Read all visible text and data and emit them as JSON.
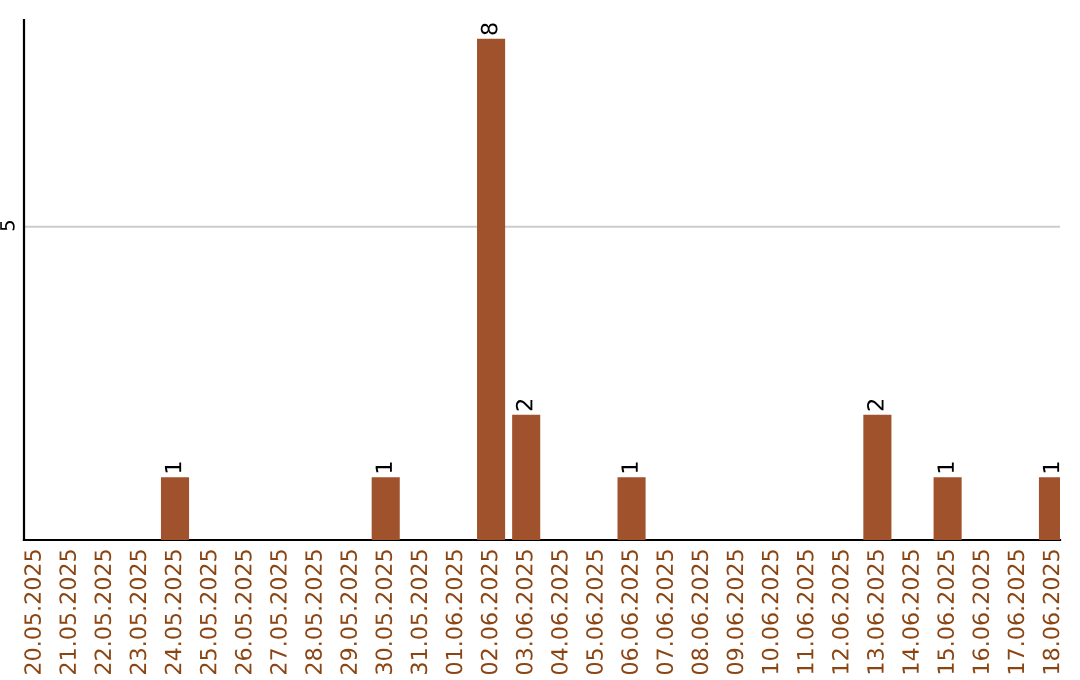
{
  "chart_data": {
    "type": "bar",
    "categories": [
      "20.05.2025",
      "21.05.2025",
      "22.05.2025",
      "23.05.2025",
      "24.05.2025",
      "25.05.2025",
      "26.05.2025",
      "27.05.2025",
      "28.05.2025",
      "29.05.2025",
      "30.05.2025",
      "31.05.2025",
      "01.06.2025",
      "02.06.2025",
      "03.06.2025",
      "04.06.2025",
      "05.06.2025",
      "06.06.2025",
      "07.06.2025",
      "08.06.2025",
      "09.06.2025",
      "10.06.2025",
      "11.06.2025",
      "12.06.2025",
      "13.06.2025",
      "14.06.2025",
      "15.06.2025",
      "16.06.2025",
      "17.06.2025",
      "18.06.2025"
    ],
    "values": [
      0,
      0,
      0,
      0,
      1,
      0,
      0,
      0,
      0,
      0,
      1,
      0,
      0,
      8,
      2,
      0,
      0,
      1,
      0,
      0,
      0,
      0,
      0,
      0,
      2,
      0,
      1,
      0,
      0,
      1
    ],
    "color": "#a0522d",
    "ylim": [
      0,
      8.3
    ],
    "value_labels": [
      null,
      null,
      null,
      null,
      "1",
      null,
      null,
      null,
      null,
      null,
      "1",
      null,
      null,
      "8",
      "2",
      null,
      null,
      "1",
      null,
      null,
      null,
      null,
      null,
      null,
      "2",
      null,
      "1",
      null,
      null,
      "1"
    ],
    "yticks": [
      5
    ],
    "grid": "y"
  }
}
